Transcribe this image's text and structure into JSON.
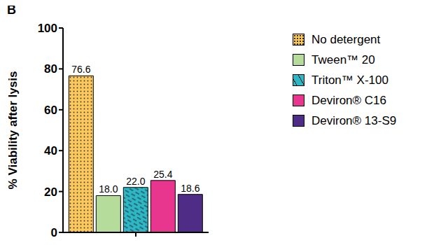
{
  "chart_data": {
    "type": "bar",
    "title": "B",
    "y_label": "% Viability after lysis",
    "categories": [
      null
    ],
    "series": [
      {
        "name": "No detergent",
        "color": "#fcc85a",
        "values": [
          76.6
        ],
        "value_labels": [
          "76.6"
        ]
      },
      {
        "name": "Tween™ 20",
        "color": "#b6dc9c",
        "values": [
          18.0
        ],
        "value_labels": [
          "18.0"
        ]
      },
      {
        "name": "Triton™ X-100",
        "color": "#2db7c6",
        "values": [
          22.0
        ],
        "value_labels": [
          "22.0"
        ]
      },
      {
        "name": "Deviron® C16",
        "color": "#e8368f",
        "values": [
          25.4
        ],
        "value_labels": [
          "25.4"
        ]
      },
      {
        "name": "Deviron® 13-S9",
        "color": "#4f2d86",
        "values": [
          18.6
        ],
        "value_labels": [
          "18.6"
        ]
      }
    ],
    "ylim": [
      0,
      100
    ],
    "yticks": [
      0,
      20,
      40,
      60,
      80,
      100
    ],
    "grid": false,
    "legend": "right",
    "data_labels": true,
    "tick_labels": "y"
  }
}
